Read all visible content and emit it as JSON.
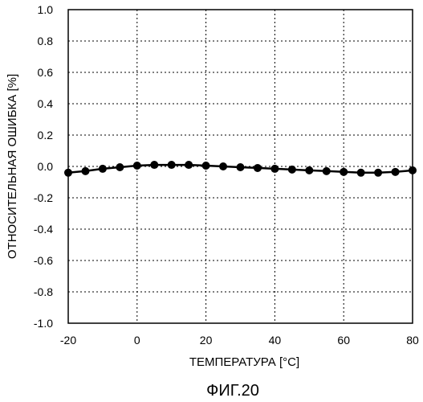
{
  "chart_data": {
    "type": "line",
    "xlabel": "ТЕМПЕРАТУРА [°C]",
    "ylabel": "ОТНОСИТЕЛЬНАЯ ОШИБКА [%]",
    "caption": "ФИГ.20",
    "xlim": [
      -20,
      80
    ],
    "ylim": [
      -1.0,
      1.0
    ],
    "x_ticks": [
      -20,
      0,
      20,
      40,
      60,
      80
    ],
    "y_ticks": [
      1.0,
      0.8,
      0.6,
      0.4,
      0.2,
      0.0,
      -0.2,
      -0.4,
      -0.6,
      -0.8,
      -1.0
    ],
    "x_tick_labels": [
      "-20",
      "0",
      "20",
      "40",
      "60",
      "80"
    ],
    "y_tick_labels": [
      "1.0",
      "0.8",
      "0.6",
      "0.4",
      "0.2",
      "0.0",
      "-0.2",
      "-0.4",
      "-0.6",
      "-0.8",
      "-1.0"
    ],
    "grid": true,
    "series": [
      {
        "x": [
          -20,
          -15,
          -10,
          -5,
          0,
          5,
          10,
          15,
          20,
          25,
          30,
          35,
          40,
          45,
          50,
          55,
          60,
          65,
          70,
          75,
          80
        ],
        "y": [
          -0.04,
          -0.03,
          -0.015,
          -0.005,
          0.005,
          0.01,
          0.01,
          0.01,
          0.005,
          0.0,
          -0.005,
          -0.01,
          -0.015,
          -0.02,
          -0.025,
          -0.03,
          -0.035,
          -0.04,
          -0.04,
          -0.035,
          -0.025
        ]
      }
    ]
  }
}
